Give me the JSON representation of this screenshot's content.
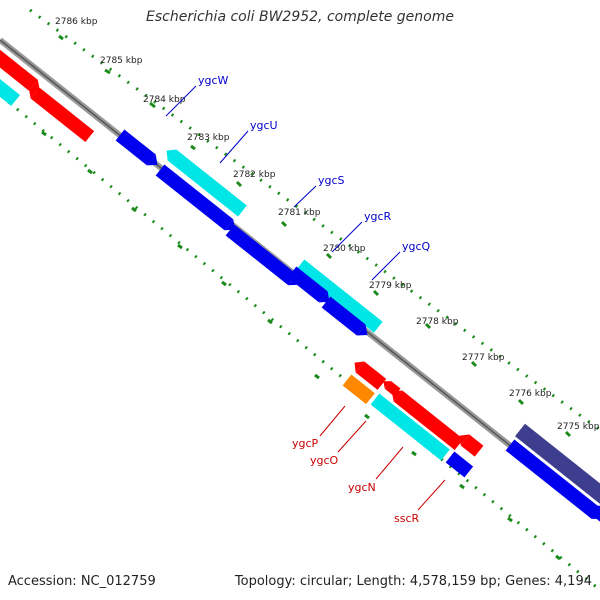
{
  "title": "Escherichia coli BW2952, complete genome",
  "accession": "Accession: NC_012759",
  "topology": "Topology: circular; Length: 4,578,159 bp; Genes: 4,194",
  "ruler": {
    "kbp_labels": [
      "2786 kbp",
      "2785 kbp",
      "2784 kbp",
      "2783 kbp",
      "2782 kbp",
      "2781 kbp",
      "2780 kbp",
      "2779 kbp",
      "2778 kbp",
      "2777 kbp",
      "2776 kbp",
      "2775 kbp"
    ]
  },
  "labels": {
    "forward": [
      "ygcW",
      "ygcU",
      "ygcS",
      "ygcR",
      "ygcQ"
    ],
    "reverse": [
      "ygcP",
      "ygcO",
      "ygcN",
      "sscR"
    ]
  },
  "colors": {
    "red": "#ff0000",
    "cyan": "#00e5e5",
    "blue": "#0000ee",
    "orange": "#ff8800",
    "navy": "#3e3e8e",
    "ruler": "#1a8a1a",
    "label_forward": "#0000cc",
    "label_reverse": "#cc0000",
    "backbone": "#888888"
  }
}
